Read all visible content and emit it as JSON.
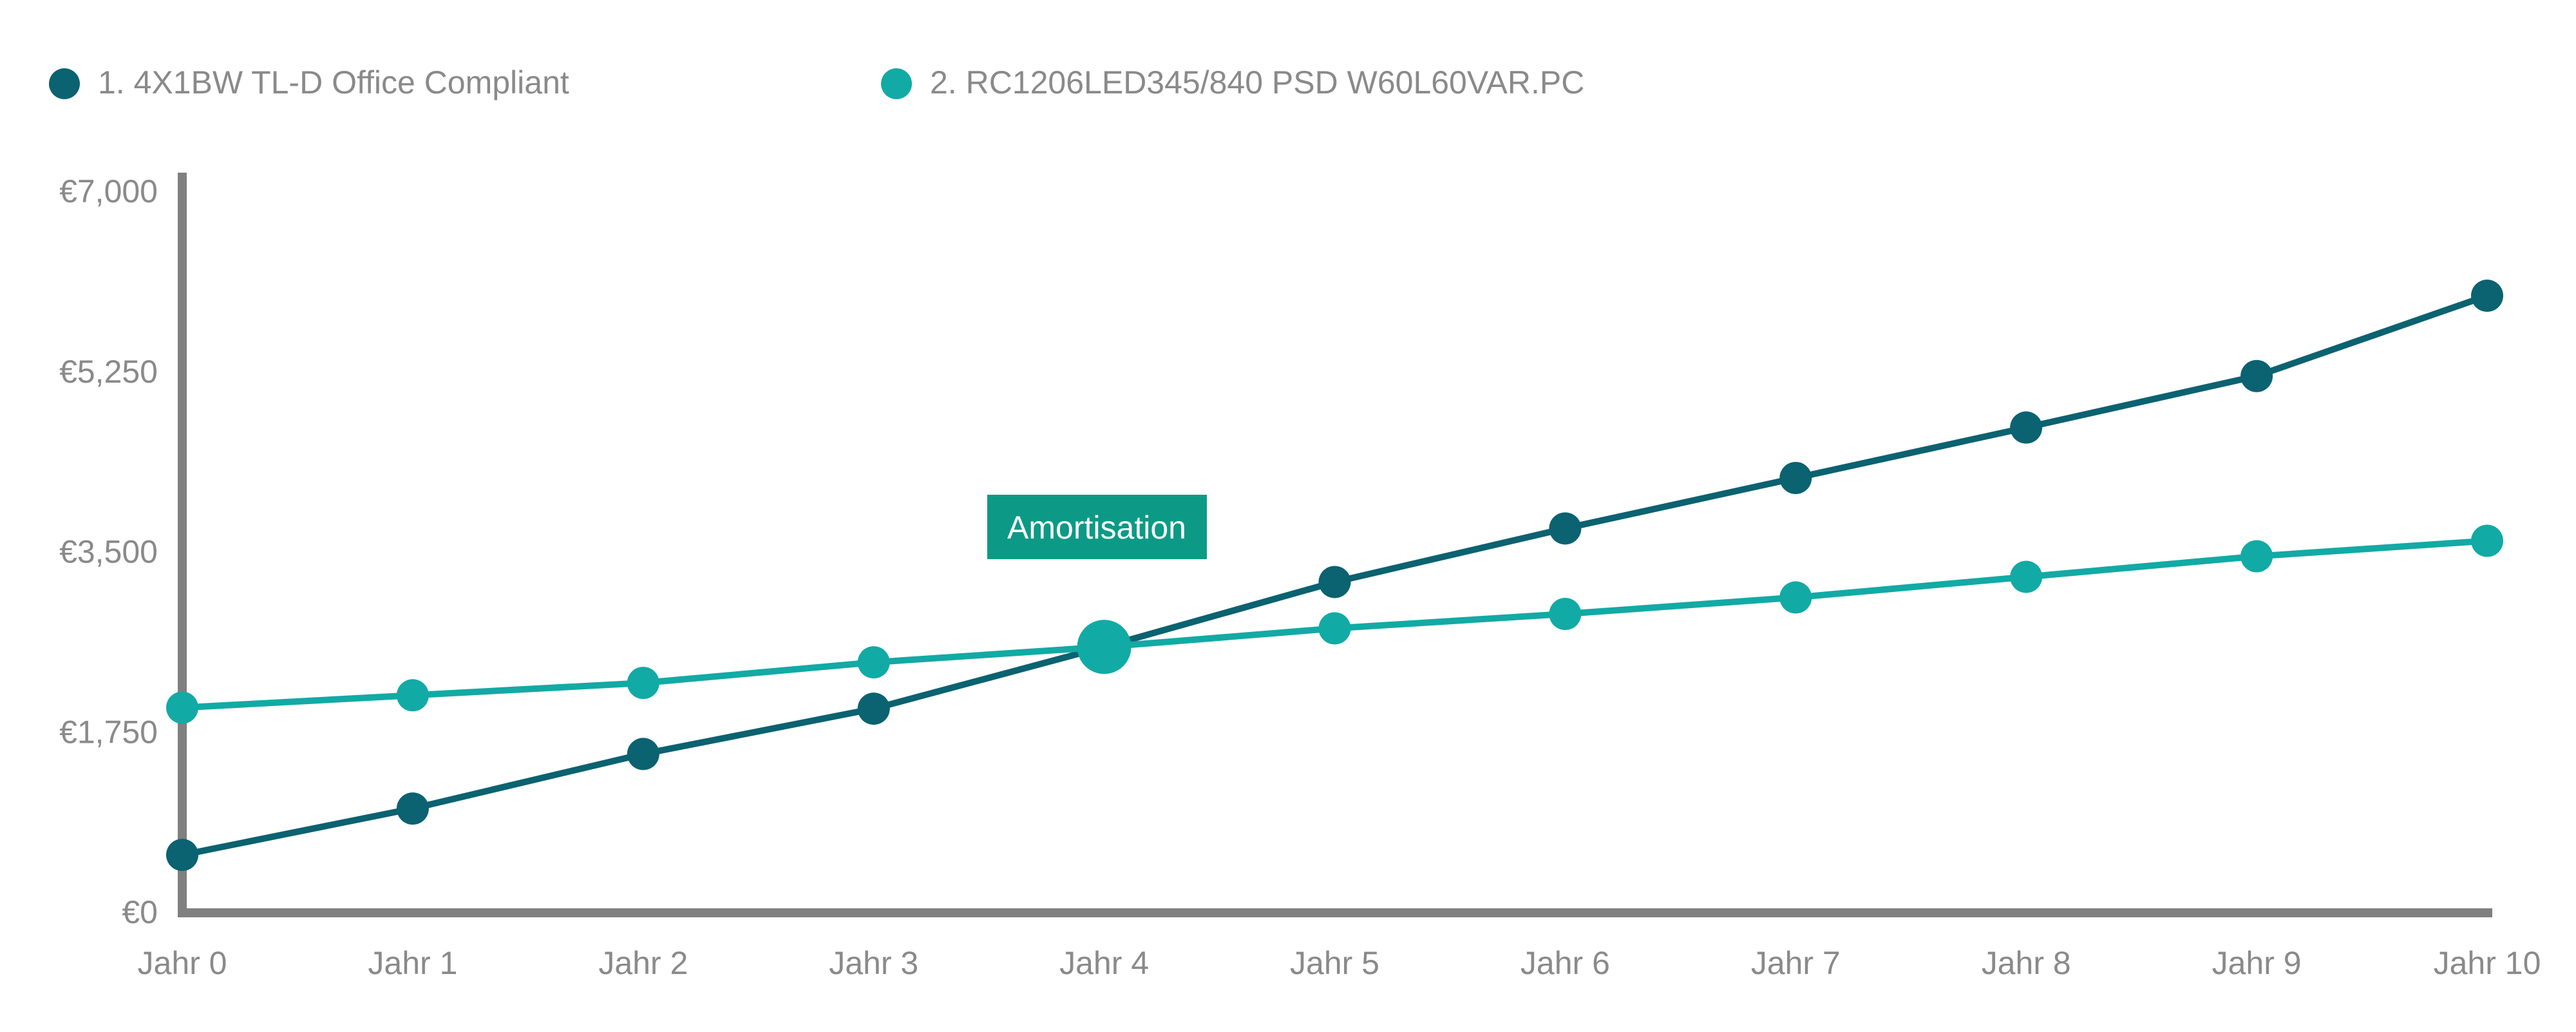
{
  "chart_data": {
    "type": "line",
    "title": "",
    "xlabel": "",
    "ylabel": "",
    "categories": [
      "Jahr 0",
      "Jahr 1",
      "Jahr 2",
      "Jahr 3",
      "Jahr 4",
      "Jahr 5",
      "Jahr 6",
      "Jahr 7",
      "Jahr 8",
      "Jahr 9",
      "Jahr 10"
    ],
    "y_ticks": [
      0,
      1750,
      3500,
      5250,
      7000
    ],
    "y_tick_labels": [
      "€0",
      "€1,750",
      "€3,500",
      "€5,250",
      "€7,000"
    ],
    "ylim": [
      0,
      7000
    ],
    "grid": false,
    "legend_position": "top-left",
    "series": [
      {
        "name": "1. 4X1BW TL-D Office Compliant",
        "color": "#0b6270",
        "values": [
          550,
          1000,
          1530,
          1970,
          2570,
          3200,
          3720,
          4210,
          4700,
          5200,
          5980
        ]
      },
      {
        "name": "2. RC1206LED345/840 PSD W60L60VAR.PC",
        "color": "#12aaa5",
        "values": [
          1980,
          2100,
          2220,
          2420,
          2570,
          2750,
          2890,
          3050,
          3250,
          3450,
          3600
        ]
      }
    ],
    "annotation": {
      "label": "Amortisation",
      "category_index": 4,
      "value": 2570,
      "box_color": "#0c9a86",
      "marker_color": "#12aaa5"
    },
    "axis_color": "#808080"
  }
}
